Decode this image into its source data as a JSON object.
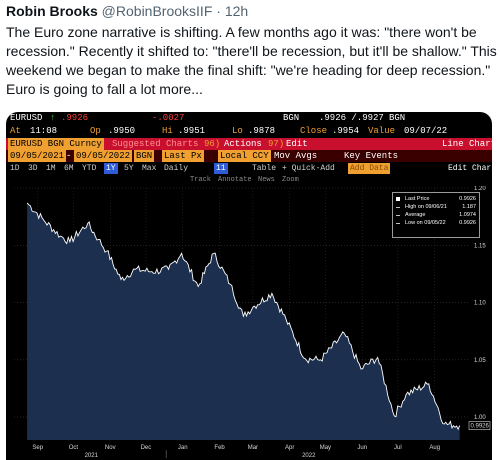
{
  "tweet": {
    "name": "Robin Brooks",
    "handle": "@RobinBrooksIIF",
    "sep": "·",
    "time": "12h",
    "text": "The Euro zone narrative is shifting. A few months ago it was: \"there won't be recession.\" Recently it shifted to: \"there'll be recession, but it'll be shallow.\" This weekend we began to make the final shift: \"we're heading for deep recession.\" Euro is going to fall a lot more..."
  },
  "terminal": {
    "row1": {
      "ticker": "EURUSD",
      "arrow": "↑",
      "last": ".9926",
      "change": "-.0027",
      "bgn": "BGN",
      "bid_ask": ".9926 /.9927",
      "bgn2": "BGN"
    },
    "row2": {
      "at_label": "At",
      "time": "11:08",
      "op_label": "Op",
      "open": ".9950",
      "hi_label": "Hi",
      "high": ".9951",
      "lo_label": "Lo",
      "low": ".9878",
      "close_label": "Close",
      "close": ".9954",
      "value_label": "Value",
      "value_date": "09/07/22"
    },
    "row3": {
      "security": "EURUSD BGN Curncy",
      "suggested": "Suggested Charts",
      "actions": "Actions",
      "actions_num": "96)",
      "edit": "Edit",
      "edit_num": "97)",
      "title": "Line Chart"
    },
    "row4": {
      "start": "09/05/2021",
      "end": "09/05/2022",
      "source": "BGN",
      "field": "Last Px",
      "ccy": "Local CCY",
      "mov_avgs": "Mov Avgs",
      "key_events": "Key Events"
    },
    "row5": {
      "periods": [
        "1D",
        "3D",
        "1M",
        "6M",
        "YTD",
        "1Y",
        "5Y",
        "Max"
      ],
      "selected": "1Y",
      "frequency": "Daily",
      "chart_type_num": "11",
      "table": "Table",
      "quick_add": "+ Quick-Add",
      "add_data": "Add Data",
      "edit_chart": "Edit Chart"
    },
    "row6": {
      "track": "Track",
      "annotate": "Annotate",
      "news": "News",
      "zoom": "Zoom"
    },
    "legend": {
      "last_price_label": "Last Price",
      "last_price": "0.9926",
      "high_label": "High on 09/06/21",
      "high": "1.187",
      "average_label": "Average",
      "average": "1.0974",
      "low_label": "Low on 09/05/22",
      "low": "0.9926"
    },
    "last_value_tag": "0.9926"
  },
  "chart_data": {
    "type": "line",
    "title": "",
    "xlabel": "",
    "ylabel": "",
    "x_ticks": [
      "Sep",
      "Oct",
      "Nov",
      "Dec",
      "Jan",
      "Feb",
      "Mar",
      "Apr",
      "May",
      "Jun",
      "Jul",
      "Aug"
    ],
    "x_year_labels": [
      "2021",
      "2022"
    ],
    "y_ticks": [
      1.2,
      1.15,
      1.1,
      1.05,
      1.0
    ],
    "ylim": [
      0.98,
      1.2
    ],
    "grid": true,
    "series": [
      {
        "name": "Last Price",
        "x": [
          "2021-09-06",
          "2021-09-20",
          "2021-10-04",
          "2021-10-12",
          "2021-10-27",
          "2021-11-05",
          "2021-11-12",
          "2021-11-24",
          "2021-12-06",
          "2021-12-20",
          "2022-01-03",
          "2022-01-14",
          "2022-01-28",
          "2022-02-10",
          "2022-02-24",
          "2022-03-07",
          "2022-03-15",
          "2022-03-31",
          "2022-04-12",
          "2022-04-28",
          "2022-05-11",
          "2022-05-31",
          "2022-06-14",
          "2022-06-28",
          "2022-07-12",
          "2022-07-22",
          "2022-08-10",
          "2022-08-23",
          "2022-09-05"
        ],
        "values": [
          1.187,
          1.172,
          1.158,
          1.153,
          1.169,
          1.155,
          1.145,
          1.12,
          1.129,
          1.127,
          1.129,
          1.143,
          1.114,
          1.143,
          1.116,
          1.088,
          1.096,
          1.108,
          1.085,
          1.051,
          1.05,
          1.073,
          1.042,
          1.052,
          1.001,
          1.02,
          1.029,
          0.994,
          0.9926
        ]
      }
    ]
  },
  "colors": {
    "terminal_bg": "#000000",
    "bloomberg_orange": "#f0a030",
    "header_red": "#c8102e",
    "line": "#ffffff",
    "area_fill": "#1c2f4e",
    "grid": "#3a3a3a"
  }
}
